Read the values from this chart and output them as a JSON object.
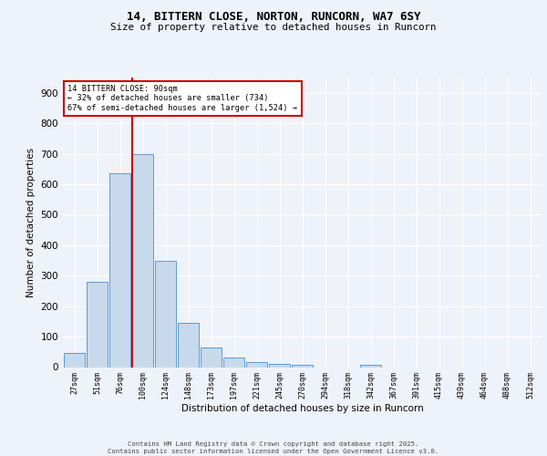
{
  "title1": "14, BITTERN CLOSE, NORTON, RUNCORN, WA7 6SY",
  "title2": "Size of property relative to detached houses in Runcorn",
  "xlabel": "Distribution of detached houses by size in Runcorn",
  "ylabel": "Number of detached properties",
  "bar_labels": [
    "27sqm",
    "51sqm",
    "76sqm",
    "100sqm",
    "124sqm",
    "148sqm",
    "173sqm",
    "197sqm",
    "221sqm",
    "245sqm",
    "270sqm",
    "294sqm",
    "318sqm",
    "342sqm",
    "367sqm",
    "391sqm",
    "415sqm",
    "439sqm",
    "464sqm",
    "488sqm",
    "512sqm"
  ],
  "bar_values": [
    45,
    280,
    635,
    700,
    350,
    145,
    65,
    30,
    15,
    10,
    8,
    0,
    0,
    8,
    0,
    0,
    0,
    0,
    0,
    0,
    0
  ],
  "bar_color": "#c8d9ec",
  "bar_edge_color": "#5b9bd5",
  "annotation_line1": "14 BITTERN CLOSE: 90sqm",
  "annotation_line2": "← 32% of detached houses are smaller (734)",
  "annotation_line3": "67% of semi-detached houses are larger (1,524) →",
  "annotation_box_color": "#ffffff",
  "annotation_box_edge": "#cc0000",
  "vline_color": "#cc0000",
  "ylim": [
    0,
    950
  ],
  "yticks": [
    0,
    100,
    200,
    300,
    400,
    500,
    600,
    700,
    800,
    900
  ],
  "bg_color": "#eef2f9",
  "grid_color": "#ffffff",
  "footer1": "Contains HM Land Registry data © Crown copyright and database right 2025.",
  "footer2": "Contains public sector information licensed under the Open Government Licence v3.0."
}
